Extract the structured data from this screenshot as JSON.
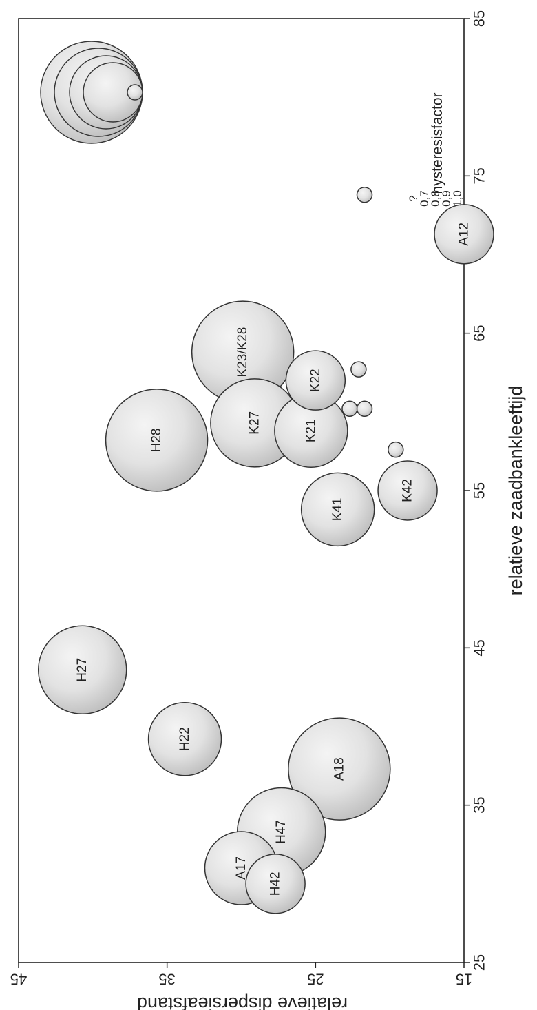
{
  "chart_data": {
    "type": "bubble",
    "orientation": "rotated-90-ccw",
    "xlabel": "relatieve zaadbankleeftijd",
    "ylabel": "relatieve dispersieafstand",
    "xlim": [
      25,
      85
    ],
    "ylim": [
      15,
      45
    ],
    "xticks": [
      "25",
      "35",
      "45",
      "55",
      "65",
      "75",
      "85"
    ],
    "yticks": [
      "15",
      "25",
      "35",
      "45"
    ],
    "grid": false,
    "points": [
      {
        "label": "H42",
        "x": 30.0,
        "y": 27.7,
        "size": 0.7
      },
      {
        "label": "A17",
        "x": 31.0,
        "y": 30.0,
        "size": 0.8
      },
      {
        "label": "H47",
        "x": 33.3,
        "y": 27.3,
        "size": 0.9
      },
      {
        "label": "A18",
        "x": 37.3,
        "y": 23.4,
        "size": 1.0
      },
      {
        "label": "H22",
        "x": 39.2,
        "y": 33.8,
        "size": 0.8
      },
      {
        "label": "H27",
        "x": 43.6,
        "y": 40.7,
        "size": 0.9
      },
      {
        "label": "K41",
        "x": 53.8,
        "y": 23.5,
        "size": 0.8
      },
      {
        "label": "K42",
        "x": 55.0,
        "y": 18.8,
        "size": 0.7
      },
      {
        "label": "H28",
        "x": 58.2,
        "y": 35.7,
        "size": 1.0
      },
      {
        "label": "K27",
        "x": 59.3,
        "y": 29.1,
        "size": 0.9
      },
      {
        "label": "K21",
        "x": 58.8,
        "y": 25.3,
        "size": 0.8
      },
      {
        "label": "K22",
        "x": 62.0,
        "y": 25.0,
        "size": 0.7
      },
      {
        "label": "K23/K28",
        "x": 63.8,
        "y": 29.9,
        "size": 1.0
      },
      {
        "label": "A12",
        "x": 71.3,
        "y": 15.0,
        "size": 0.7
      },
      {
        "label": "",
        "x": 57.6,
        "y": 19.6,
        "size": null
      },
      {
        "label": "",
        "x": 60.2,
        "y": 22.7,
        "size": null
      },
      {
        "label": "",
        "x": 60.2,
        "y": 21.7,
        "size": null
      },
      {
        "label": "",
        "x": 62.7,
        "y": 22.1,
        "size": null
      },
      {
        "label": "",
        "x": 73.8,
        "y": 21.7,
        "size": null
      }
    ],
    "legend": {
      "title": "hysteresisfactor",
      "position": "top-right",
      "entries": [
        {
          "label": "1,0",
          "size": 1.0
        },
        {
          "label": "0,9",
          "size": 0.9
        },
        {
          "label": "0,8",
          "size": 0.8
        },
        {
          "label": "0,7",
          "size": 0.7
        },
        {
          "label": "?",
          "size": null
        }
      ]
    }
  }
}
